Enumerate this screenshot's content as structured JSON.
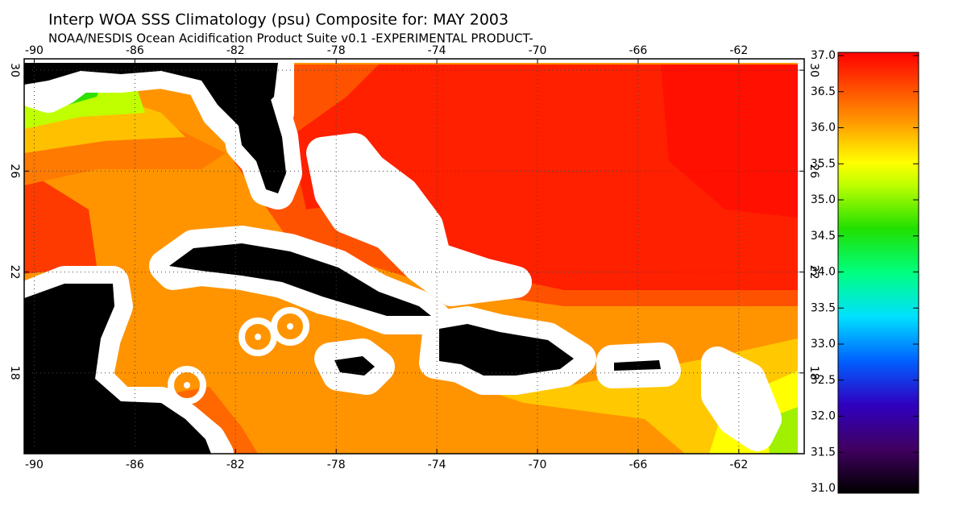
{
  "header": {
    "title": "Interp WOA SSS Climatology (psu) Composite for: MAY 2003",
    "subtitle": "NOAA/NESDIS Ocean Acidification Product Suite  v0.1 -EXPERIMENTAL PRODUCT-"
  },
  "map": {
    "lonlim": [
      -90.4,
      -59.4
    ],
    "latlim": [
      14.8,
      30.45
    ],
    "lonticks": [
      -90,
      -86,
      -82,
      -78,
      -74,
      -70,
      -66,
      -62
    ],
    "latticks": [
      30,
      26,
      22,
      18
    ]
  },
  "colorbar": {
    "lim": [
      31,
      37
    ],
    "ticks": [
      {
        "value": 31,
        "label": "31.0"
      },
      {
        "value": 31.5,
        "label": "31.5"
      },
      {
        "value": 32,
        "label": "32.0"
      },
      {
        "value": 32.5,
        "label": "32.5"
      },
      {
        "value": 33,
        "label": "33.0"
      },
      {
        "value": 33.5,
        "label": "33.5"
      },
      {
        "value": 34,
        "label": "34.0"
      },
      {
        "value": 34.5,
        "label": "34.5"
      },
      {
        "value": 35,
        "label": "35.0"
      },
      {
        "value": 35.5,
        "label": "35.5"
      },
      {
        "value": 36,
        "label": "36.0"
      },
      {
        "value": 36.5,
        "label": "36.5"
      },
      {
        "value": 37,
        "label": "37.0"
      }
    ]
  }
}
